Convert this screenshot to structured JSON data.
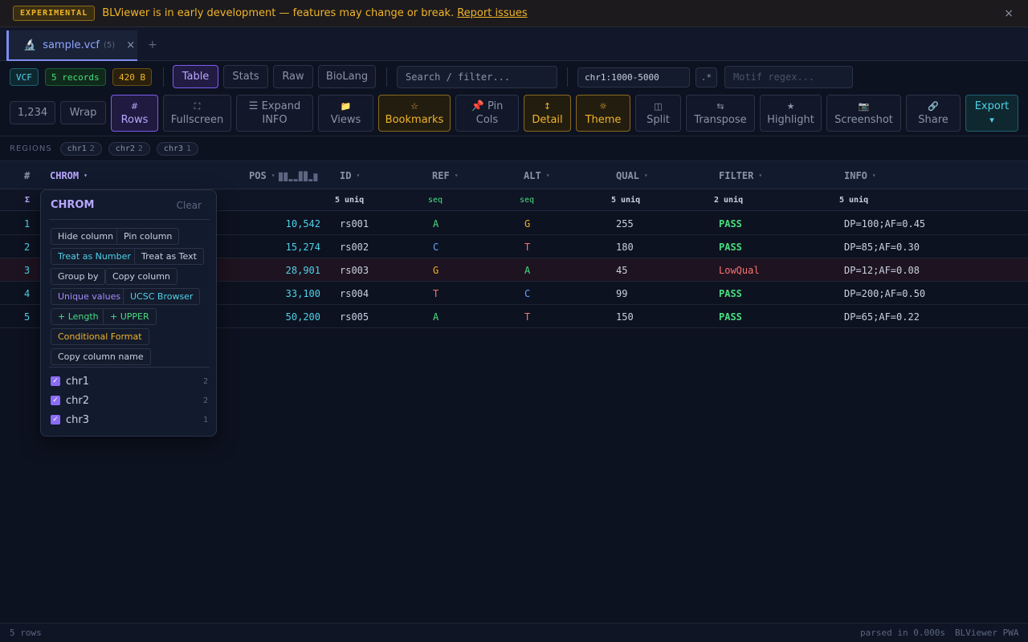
{
  "banner": {
    "badge": "EXPERIMENTAL",
    "message": "BLViewer is in early development — features may change or break.",
    "link": "Report issues",
    "close": "×"
  },
  "tabs": [
    {
      "name": "sample.vcf",
      "count": "(5)",
      "close": "×"
    }
  ],
  "tab_add": "+",
  "meta": {
    "format": "VCF",
    "records": "5 records",
    "size": "420 B"
  },
  "views": [
    "Table",
    "Stats",
    "Raw",
    "BioLang"
  ],
  "active_view": "Table",
  "search": {
    "placeholder": "Search / filter..."
  },
  "region_filter": {
    "value": "chr1:1000-5000"
  },
  "regex_toggle": ".*",
  "motif": {
    "placeholder": "Motif regex..."
  },
  "toolbar": {
    "number_format": "1,234",
    "wrap": "Wrap",
    "rows": {
      "icon": "#",
      "label": "Rows"
    },
    "fullscreen": {
      "icon": "⛶",
      "label": "Fullscreen"
    },
    "expand_info": {
      "line1": "☰ Expand",
      "line2": "INFO"
    },
    "views": {
      "icon": "📁",
      "label": "Views"
    },
    "bookmarks": {
      "icon": "☆",
      "label": "Bookmarks"
    },
    "pin_cols": {
      "line1": "📌 Pin",
      "line2": "Cols"
    },
    "detail": {
      "icon": "↕",
      "label": "Detail"
    },
    "theme": {
      "icon": "☼",
      "label": "Theme"
    },
    "split": {
      "icon": "◫",
      "label": "Split"
    },
    "transpose": {
      "icon": "⇆",
      "label": "Transpose"
    },
    "highlight": {
      "icon": "★",
      "label": "Highlight"
    },
    "screenshot": {
      "icon": "📷",
      "label": "Screenshot"
    },
    "share": {
      "icon": "🔗",
      "label": "Share"
    },
    "export": {
      "label": "Export",
      "icon": "▾"
    }
  },
  "regions": {
    "label": "REGIONS",
    "chips": [
      {
        "name": "chr1",
        "count": "2"
      },
      {
        "name": "chr2",
        "count": "2"
      },
      {
        "name": "chr3",
        "count": "1"
      }
    ]
  },
  "table": {
    "columns": [
      "#",
      "CHROM",
      "POS",
      "ID",
      "REF",
      "ALT",
      "QUAL",
      "FILTER",
      "INFO"
    ],
    "caret": "▾",
    "summary": {
      "sigma": "Σ",
      "ID": "5 uniq",
      "REF": "seq",
      "ALT": "seq",
      "QUAL": "5 uniq",
      "FILTER": "2 uniq",
      "INFO": "5 uniq"
    },
    "rows": [
      {
        "n": "1",
        "pos": "10,542",
        "id": "rs001",
        "ref": "A",
        "alt": "G",
        "qual": "255",
        "filter": "PASS",
        "info": "DP=100;AF=0.45"
      },
      {
        "n": "2",
        "pos": "15,274",
        "id": "rs002",
        "ref": "C",
        "alt": "T",
        "qual": "180",
        "filter": "PASS",
        "info": "DP=85;AF=0.30"
      },
      {
        "n": "3",
        "pos": "28,901",
        "id": "rs003",
        "ref": "G",
        "alt": "A",
        "qual": "45",
        "filter": "LowQual",
        "info": "DP=12;AF=0.08"
      },
      {
        "n": "4",
        "pos": "33,100",
        "id": "rs004",
        "ref": "T",
        "alt": "C",
        "qual": "99",
        "filter": "PASS",
        "info": "DP=200;AF=0.50"
      },
      {
        "n": "5",
        "pos": "50,200",
        "id": "rs005",
        "ref": "A",
        "alt": "T",
        "qual": "150",
        "filter": "PASS",
        "info": "DP=65;AF=0.22"
      }
    ],
    "pos_histogram": [
      0.8,
      0.8,
      0.2,
      0.2,
      0.9,
      0.9,
      0.2,
      0.7
    ]
  },
  "column_menu": {
    "title": "CHROM",
    "clear": "Clear",
    "actions": [
      {
        "label": "Hide column",
        "tone": "default"
      },
      {
        "label": "Pin column",
        "tone": "default"
      },
      {
        "label": "Treat as Number",
        "tone": "cyan"
      },
      {
        "label": "Treat as Text",
        "tone": "default"
      },
      {
        "label": "Group by",
        "tone": "default"
      },
      {
        "label": "Copy column",
        "tone": "default"
      },
      {
        "label": "Unique values",
        "tone": "violet"
      },
      {
        "label": "UCSC Browser",
        "tone": "cyan"
      },
      {
        "label": "+ Length",
        "tone": "green"
      },
      {
        "label": "+ UPPER",
        "tone": "green"
      },
      {
        "label": "Conditional Format",
        "tone": "gold"
      },
      {
        "label": "Copy column name",
        "tone": "default"
      }
    ],
    "values": [
      {
        "name": "chr1",
        "count": "2",
        "checked": true
      },
      {
        "name": "chr2",
        "count": "2",
        "checked": true
      },
      {
        "name": "chr3",
        "count": "1",
        "checked": true
      }
    ]
  },
  "status": {
    "rows": "5 rows",
    "parsed": "parsed in 0.000s",
    "app": "BLViewer PWA"
  },
  "colors": {
    "accent": "#7c5cf0",
    "cyan": "#4fd1e8",
    "gold": "#f0b429",
    "pass": "#4ade80",
    "fail": "#f87171"
  }
}
